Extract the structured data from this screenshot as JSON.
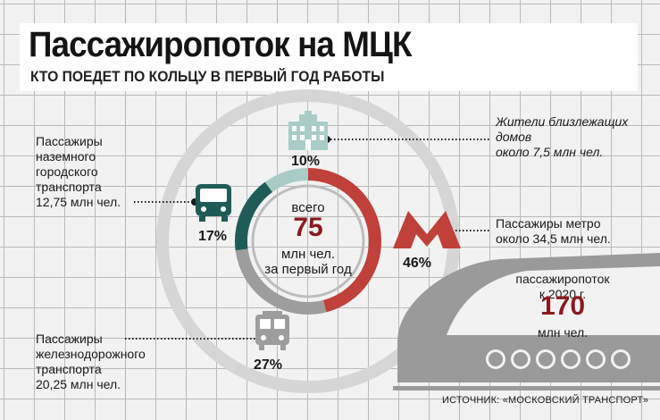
{
  "title": "Пассажиропоток на МЦК",
  "subtitle": "КТО ПОЕДЕТ ПО КОЛЬЦУ В ПЕРВЫЙ ГОД РАБОТЫ",
  "colors": {
    "metro": "#c0403a",
    "residents": "#a9cdc6",
    "ground": "#1f5c58",
    "rail": "#9d9d9d",
    "accent_text": "#8b1a1f",
    "ring": "#d9d9d9"
  },
  "center": {
    "top_label": "всего",
    "value": "75",
    "unit": "млн чел.",
    "period": "за первый год"
  },
  "chart_data": {
    "type": "pie",
    "title": "Пассажиропоток на МЦК",
    "subtitle": "КТО ПОЕДЕТ ПО КОЛЬЦУ В ПЕРВЫЙ ГОД РАБОТЫ",
    "total": {
      "value": 75,
      "unit": "млн чел.",
      "label": "всего",
      "period": "за первый год"
    },
    "slices": [
      {
        "key": "metro",
        "label": "Пассажиры метро\nоколо 34,5 млн чел.",
        "percent": 46,
        "percent_label": "46%",
        "value": 34.5,
        "icon": "metro-m-icon"
      },
      {
        "key": "rail",
        "label": "Пассажиры\nжелезнодорожного\nтранспорта\n20,25 млн чел.",
        "percent": 27,
        "percent_label": "27%",
        "value": 20.25,
        "icon": "train-icon"
      },
      {
        "key": "ground",
        "label": "Пассажиры\nназемного\nгородского\nтранспорта\n12,75 млн чел.",
        "percent": 17,
        "percent_label": "17%",
        "value": 12.75,
        "icon": "bus-icon"
      },
      {
        "key": "residents",
        "label": "Жители близлежащих\nдомов\nоколо 7,5 млн чел.",
        "percent": 10,
        "percent_label": "10%",
        "value": 7.5,
        "icon": "building-icon"
      }
    ],
    "forecast": {
      "label": "пассажиропоток\nк 2020 г.",
      "value": 170,
      "value_label": "170",
      "unit": "млн чел."
    }
  },
  "source": "ИСТОЧНИК: «МОСКОВСКИЙ ТРАНСПОРТ»"
}
